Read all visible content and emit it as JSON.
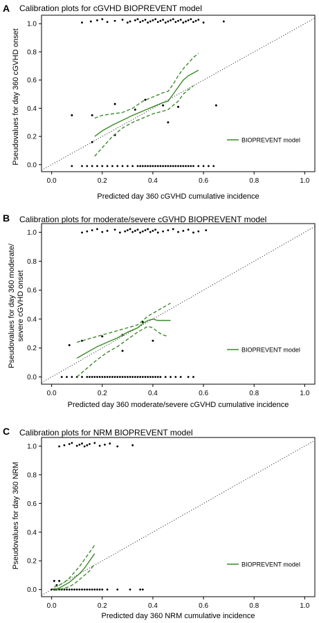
{
  "figure": {
    "panels": [
      {
        "letter": "A",
        "title": "Calibration plots for cGVHD BIOPREVENT model",
        "xlabel": "Predicted day 360 cGVHD cumulative incidence",
        "ylabel": [
          "Pseudovalues for day 360 cGVHD onset"
        ],
        "legend_label": "BIOPREVENT model"
      },
      {
        "letter": "B",
        "title": "Calibration plots for moderate/severe cGVHD BIOPREVENT model",
        "xlabel": "Predicted day 360 moderate/severe cGVHD cumulative incidence",
        "ylabel": [
          "Pseudovalues for day 360 moderate/",
          "severe cGVHD onset"
        ],
        "legend_label": "BIOPREVENT model"
      },
      {
        "letter": "C",
        "title": "Calibration plots for NRM BIOPREVENT model",
        "xlabel": "Predicted day 360 NRM cumulative incidence",
        "ylabel": [
          "Pseudovalues for day 360 NRM"
        ],
        "legend_label": "BIOPREVENT model"
      }
    ]
  },
  "chart_data": [
    {
      "type": "scatter",
      "title": "Calibration plots for cGVHD BIOPREVENT model",
      "xlabel": "Predicted day 360 cGVHD cumulative incidence",
      "ylabel": "Pseudovalues for day 360 cGVHD onset",
      "xlim": [
        -0.04,
        1.04
      ],
      "ylim": [
        -0.05,
        1.06
      ],
      "x_ticks": [
        0.0,
        0.2,
        0.4,
        0.6,
        0.8,
        1.0
      ],
      "y_ticks": [
        0.0,
        0.2,
        0.4,
        0.6,
        0.8,
        1.0
      ],
      "x_tick_labels": [
        "0.0",
        "0.2",
        "0.4",
        "0.6",
        "0.8",
        "1.0"
      ],
      "y_tick_labels": [
        "0.0",
        "0.2",
        "0.4",
        "0.6",
        "0.8",
        "1.0"
      ],
      "grid": false,
      "legend_position": "right",
      "colors": {
        "points": "#000000",
        "model": "#3a8a28",
        "reference": "#333333"
      },
      "reference_line": {
        "x": [
          -0.04,
          1.04
        ],
        "y": [
          -0.04,
          1.04
        ]
      },
      "points_top": {
        "y": 1.02,
        "x": [
          0.12,
          0.155,
          0.18,
          0.2,
          0.22,
          0.25,
          0.28,
          0.3,
          0.31,
          0.33,
          0.34,
          0.35,
          0.36,
          0.37,
          0.38,
          0.39,
          0.4,
          0.41,
          0.42,
          0.43,
          0.44,
          0.45,
          0.46,
          0.47,
          0.48,
          0.49,
          0.5,
          0.51,
          0.52,
          0.53,
          0.54,
          0.55,
          0.56,
          0.57,
          0.58,
          0.6,
          0.68
        ]
      },
      "points_bottom": {
        "y": -0.01,
        "x": [
          0.08,
          0.12,
          0.14,
          0.16,
          0.18,
          0.2,
          0.22,
          0.24,
          0.26,
          0.28,
          0.3,
          0.32,
          0.34,
          0.35,
          0.36,
          0.37,
          0.38,
          0.39,
          0.4,
          0.41,
          0.42,
          0.43,
          0.44,
          0.45,
          0.46,
          0.47,
          0.48,
          0.49,
          0.5,
          0.51,
          0.52,
          0.53,
          0.54,
          0.55,
          0.56,
          0.58,
          0.6,
          0.62,
          0.64
        ]
      },
      "points_mid": [
        {
          "x": 0.08,
          "y": 0.35
        },
        {
          "x": 0.16,
          "y": 0.35
        },
        {
          "x": 0.16,
          "y": 0.16
        },
        {
          "x": 0.25,
          "y": 0.43
        },
        {
          "x": 0.25,
          "y": 0.21
        },
        {
          "x": 0.33,
          "y": 0.39
        },
        {
          "x": 0.37,
          "y": 0.46
        },
        {
          "x": 0.44,
          "y": 0.42
        },
        {
          "x": 0.46,
          "y": 0.3
        },
        {
          "x": 0.5,
          "y": 0.41
        },
        {
          "x": 0.65,
          "y": 0.42
        }
      ],
      "series": [
        {
          "name": "BIOPREVENT model",
          "x": [
            0.17,
            0.2,
            0.24,
            0.28,
            0.32,
            0.36,
            0.4,
            0.44,
            0.46,
            0.48,
            0.5,
            0.52,
            0.54,
            0.56,
            0.58
          ],
          "y": [
            0.2,
            0.24,
            0.28,
            0.315,
            0.35,
            0.38,
            0.41,
            0.44,
            0.45,
            0.5,
            0.55,
            0.6,
            0.63,
            0.65,
            0.67
          ]
        },
        {
          "name": "lower",
          "x": [
            0.17,
            0.2,
            0.24,
            0.28,
            0.32,
            0.36,
            0.4,
            0.44,
            0.46,
            0.48,
            0.5,
            0.52,
            0.54,
            0.56
          ],
          "y": [
            0.06,
            0.12,
            0.2,
            0.26,
            0.3,
            0.33,
            0.36,
            0.38,
            0.39,
            0.42,
            0.45,
            0.5,
            0.53,
            0.56
          ]
        },
        {
          "name": "upper",
          "x": [
            0.17,
            0.2,
            0.24,
            0.28,
            0.32,
            0.36,
            0.4,
            0.44,
            0.46,
            0.48,
            0.5,
            0.52,
            0.54,
            0.56,
            0.58
          ],
          "y": [
            0.33,
            0.35,
            0.36,
            0.37,
            0.4,
            0.45,
            0.48,
            0.51,
            0.52,
            0.57,
            0.63,
            0.68,
            0.72,
            0.76,
            0.79
          ]
        }
      ]
    },
    {
      "type": "scatter",
      "title": "Calibration plots for moderate/severe cGVHD BIOPREVENT model",
      "xlabel": "Predicted day 360 moderate/severe cGVHD cumulative incidence",
      "ylabel": "Pseudovalues for day 360 moderate/severe cGVHD onset",
      "xlim": [
        -0.04,
        1.04
      ],
      "ylim": [
        -0.05,
        1.06
      ],
      "x_ticks": [
        0.0,
        0.2,
        0.4,
        0.6,
        0.8,
        1.0
      ],
      "y_ticks": [
        0.0,
        0.2,
        0.4,
        0.6,
        0.8,
        1.0
      ],
      "x_tick_labels": [
        "0.0",
        "0.2",
        "0.4",
        "0.6",
        "0.8",
        "1.0"
      ],
      "y_tick_labels": [
        "0.0",
        "0.2",
        "0.4",
        "0.6",
        "0.8",
        "1.0"
      ],
      "grid": false,
      "legend_position": "right",
      "colors": {
        "points": "#000000",
        "model": "#3a8a28",
        "reference": "#333333"
      },
      "reference_line": {
        "x": [
          -0.04,
          1.04
        ],
        "y": [
          -0.04,
          1.04
        ]
      },
      "points_top": {
        "y": 1.01,
        "x": [
          0.12,
          0.14,
          0.16,
          0.18,
          0.2,
          0.22,
          0.25,
          0.27,
          0.29,
          0.3,
          0.31,
          0.32,
          0.33,
          0.34,
          0.35,
          0.36,
          0.37,
          0.38,
          0.39,
          0.4,
          0.41,
          0.42,
          0.44,
          0.46,
          0.48,
          0.5,
          0.52,
          0.54,
          0.56,
          0.58,
          0.61
        ]
      },
      "points_bottom": {
        "y": 0.0,
        "x": [
          0.04,
          0.06,
          0.08,
          0.1,
          0.12,
          0.14,
          0.15,
          0.16,
          0.17,
          0.18,
          0.19,
          0.2,
          0.21,
          0.22,
          0.23,
          0.24,
          0.25,
          0.26,
          0.27,
          0.28,
          0.29,
          0.3,
          0.31,
          0.32,
          0.33,
          0.34,
          0.35,
          0.36,
          0.37,
          0.38,
          0.39,
          0.4,
          0.41,
          0.42,
          0.43,
          0.45,
          0.47,
          0.49,
          0.51,
          0.54,
          0.56
        ]
      },
      "points_mid": [
        {
          "x": 0.07,
          "y": 0.22
        },
        {
          "x": 0.12,
          "y": 0.25
        },
        {
          "x": 0.2,
          "y": 0.28
        },
        {
          "x": 0.28,
          "y": 0.29
        },
        {
          "x": 0.28,
          "y": 0.18
        },
        {
          "x": 0.36,
          "y": 0.38
        },
        {
          "x": 0.4,
          "y": 0.25
        }
      ],
      "series": [
        {
          "name": "BIOPREVENT model",
          "x": [
            0.1,
            0.14,
            0.18,
            0.22,
            0.26,
            0.3,
            0.34,
            0.36,
            0.38,
            0.4,
            0.42,
            0.44,
            0.47
          ],
          "y": [
            0.13,
            0.17,
            0.21,
            0.24,
            0.27,
            0.31,
            0.34,
            0.37,
            0.39,
            0.4,
            0.39,
            0.39,
            0.39
          ]
        },
        {
          "name": "lower",
          "x": [
            0.1,
            0.14,
            0.18,
            0.22,
            0.26,
            0.3,
            0.34,
            0.36,
            0.38,
            0.4,
            0.42,
            0.44,
            0.46
          ],
          "y": [
            0.0,
            0.06,
            0.12,
            0.17,
            0.21,
            0.26,
            0.31,
            0.33,
            0.35,
            0.34,
            0.31,
            0.29,
            0.28
          ]
        },
        {
          "name": "upper",
          "x": [
            0.1,
            0.14,
            0.18,
            0.22,
            0.26,
            0.3,
            0.34,
            0.36,
            0.38,
            0.4,
            0.42,
            0.44,
            0.47
          ],
          "y": [
            0.24,
            0.26,
            0.28,
            0.3,
            0.32,
            0.34,
            0.36,
            0.39,
            0.42,
            0.44,
            0.46,
            0.48,
            0.51
          ]
        }
      ]
    },
    {
      "type": "scatter",
      "title": "Calibration plots for NRM BIOPREVENT model",
      "xlabel": "Predicted day 360 NRM cumulative incidence",
      "ylabel": "Pseudovalues for day 360 NRM",
      "xlim": [
        -0.04,
        1.04
      ],
      "ylim": [
        -0.05,
        1.06
      ],
      "x_ticks": [
        0.0,
        0.2,
        0.4,
        0.6,
        0.8,
        1.0
      ],
      "y_ticks": [
        0.0,
        0.2,
        0.4,
        0.6,
        0.8,
        1.0
      ],
      "x_tick_labels": [
        "0.0",
        "0.2",
        "0.4",
        "0.6",
        "0.8",
        "1.0"
      ],
      "y_tick_labels": [
        "0.0",
        "0.2",
        "0.4",
        "0.6",
        "0.8",
        "1.0"
      ],
      "grid": false,
      "legend_position": "right",
      "colors": {
        "points": "#000000",
        "model": "#3a8a28",
        "reference": "#333333"
      },
      "reference_line": {
        "x": [
          -0.04,
          1.04
        ],
        "y": [
          -0.04,
          1.04
        ]
      },
      "points_top": {
        "y": 1.01,
        "x": [
          0.03,
          0.05,
          0.07,
          0.08,
          0.1,
          0.11,
          0.12,
          0.13,
          0.14,
          0.15,
          0.17,
          0.19,
          0.21,
          0.23,
          0.26,
          0.32
        ]
      },
      "points_bottom": {
        "y": 0.0,
        "x": [
          0.0,
          0.01,
          0.015,
          0.02,
          0.03,
          0.04,
          0.05,
          0.06,
          0.07,
          0.08,
          0.09,
          0.1,
          0.11,
          0.12,
          0.13,
          0.14,
          0.15,
          0.16,
          0.17,
          0.18,
          0.19,
          0.2,
          0.22,
          0.26,
          0.31,
          0.35,
          0.36
        ]
      },
      "points_mid": [
        {
          "x": 0.01,
          "y": 0.06
        },
        {
          "x": 0.03,
          "y": 0.06
        },
        {
          "x": 0.02,
          "y": 0.03
        }
      ],
      "series": [
        {
          "name": "BIOPREVENT model",
          "x": [
            0.01,
            0.03,
            0.05,
            0.07,
            0.09,
            0.11,
            0.13,
            0.15,
            0.17
          ],
          "y": [
            0.0,
            0.01,
            0.03,
            0.05,
            0.08,
            0.11,
            0.15,
            0.2,
            0.25
          ]
        },
        {
          "name": "lower",
          "x": [
            0.01,
            0.03,
            0.05,
            0.07,
            0.09,
            0.11,
            0.13,
            0.15,
            0.17
          ],
          "y": [
            0.0,
            0.0,
            0.01,
            0.02,
            0.04,
            0.07,
            0.1,
            0.13,
            0.18
          ]
        },
        {
          "name": "upper",
          "x": [
            0.01,
            0.03,
            0.05,
            0.07,
            0.09,
            0.11,
            0.13,
            0.15,
            0.17
          ],
          "y": [
            0.02,
            0.03,
            0.05,
            0.08,
            0.12,
            0.16,
            0.21,
            0.26,
            0.31
          ]
        }
      ]
    }
  ]
}
